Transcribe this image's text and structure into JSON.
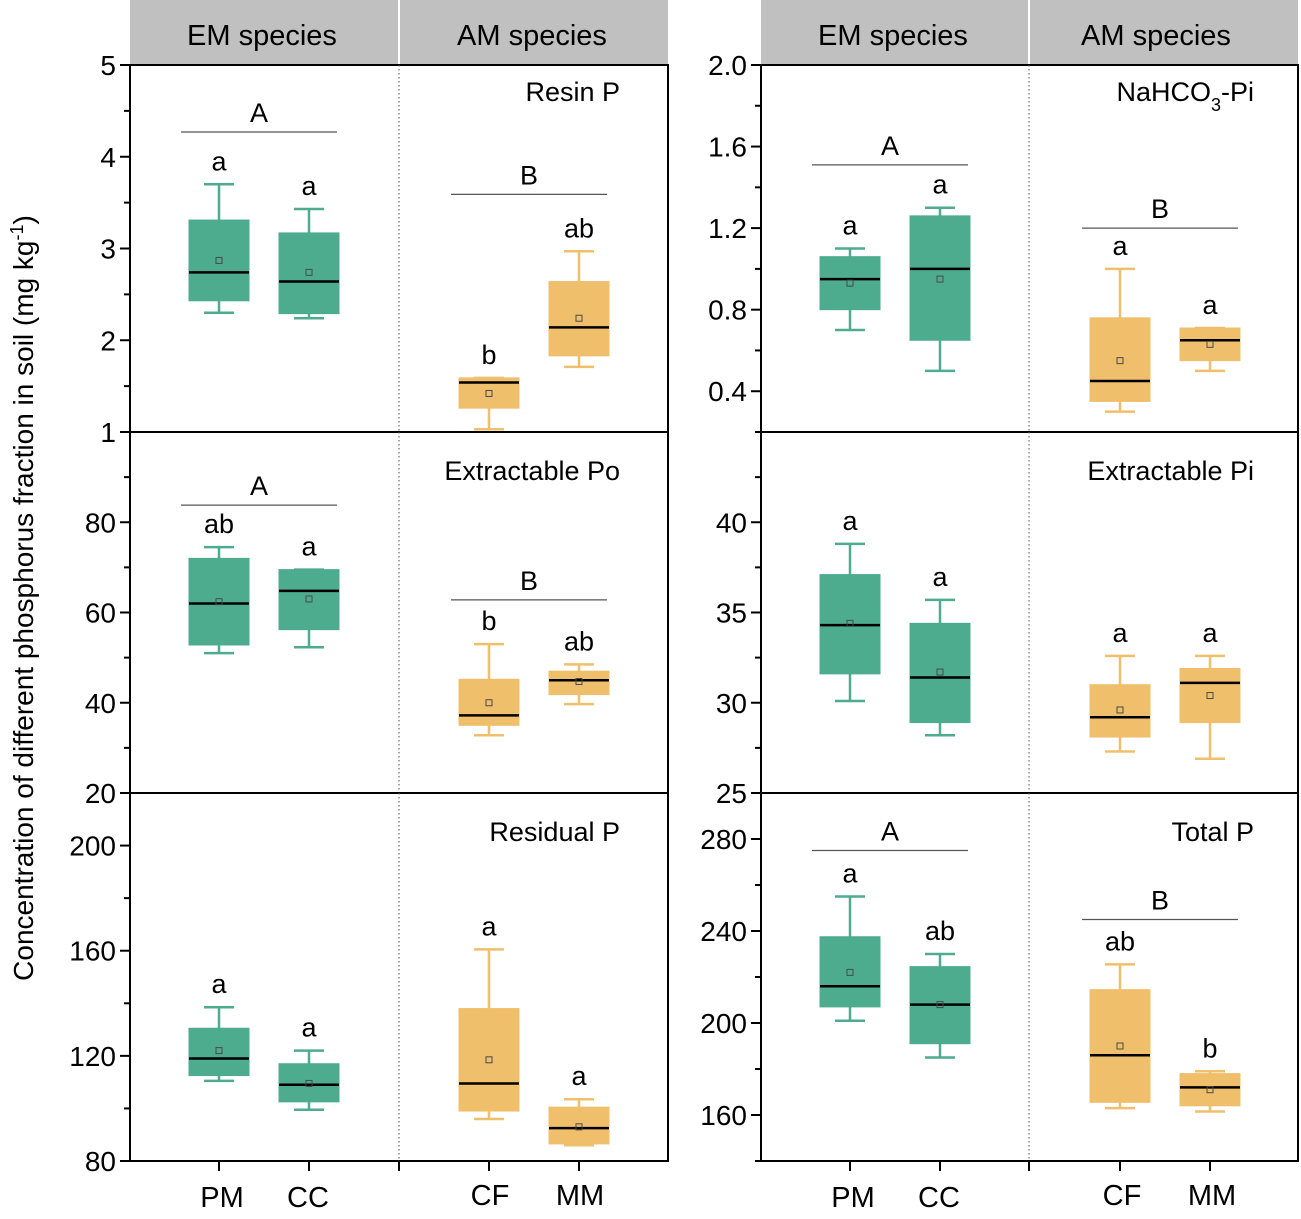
{
  "colors": {
    "em": "#4dab8e",
    "am": "#efbf6c",
    "header": "#c0c0c0",
    "median": "#000000",
    "sigline": "#555555"
  },
  "headers": {
    "left": {
      "em": "EM species",
      "am": "AM species"
    },
    "right": {
      "em": "EM species",
      "am": "AM species"
    }
  },
  "y_axis_label": "Concentration of different phosphorus fraction in soil (mg kg",
  "y_axis_label_sup": "-1",
  "y_axis_label_end": ")",
  "x_categories": {
    "left": [
      "PM",
      "CC",
      "CF",
      "MM"
    ],
    "right": [
      "PM",
      "CC",
      "CF",
      "MM"
    ]
  },
  "chart_data": [
    {
      "type": "box",
      "title": "Resin P",
      "column": "left",
      "row": 0,
      "ylim": [
        1,
        5
      ],
      "yticks": [
        1,
        2,
        3,
        4,
        5
      ],
      "categories": [
        "PM",
        "CC",
        "CF",
        "MM"
      ],
      "groups": [
        "EM",
        "EM",
        "AM",
        "AM"
      ],
      "boxes": [
        {
          "min": 2.3,
          "q1": 2.43,
          "median": 2.74,
          "q3": 3.31,
          "max": 3.7,
          "mean": 2.87
        },
        {
          "min": 2.24,
          "q1": 2.29,
          "median": 2.64,
          "q3": 3.17,
          "max": 3.43,
          "mean": 2.74
        },
        {
          "min": 1.03,
          "q1": 1.26,
          "median": 1.54,
          "q3": 1.59,
          "max": 1.59,
          "mean": 1.42
        },
        {
          "min": 1.71,
          "q1": 1.83,
          "median": 2.14,
          "q3": 2.64,
          "max": 2.97,
          "mean": 2.24
        }
      ],
      "letters": [
        "a",
        "a",
        "b",
        "ab"
      ],
      "group_letters": {
        "EM": "A",
        "AM": "B"
      },
      "group_line_y": {
        "EM": 4.27,
        "AM": 3.59
      }
    },
    {
      "type": "box",
      "title": "Extractable Po",
      "column": "left",
      "row": 1,
      "ylim": [
        20,
        100
      ],
      "yticks": [
        20,
        40,
        60,
        80
      ],
      "categories": [
        "PM",
        "CC",
        "CF",
        "MM"
      ],
      "groups": [
        "EM",
        "EM",
        "AM",
        "AM"
      ],
      "boxes": [
        {
          "min": 51,
          "q1": 52.8,
          "median": 62,
          "q3": 72,
          "max": 74.5,
          "mean": 62.4
        },
        {
          "min": 52.3,
          "q1": 56.2,
          "median": 64.8,
          "q3": 69.5,
          "max": 69.5,
          "mean": 63
        },
        {
          "min": 32.8,
          "q1": 35,
          "median": 37.2,
          "q3": 45.2,
          "max": 53,
          "mean": 40
        },
        {
          "min": 39.7,
          "q1": 41.8,
          "median": 45,
          "q3": 47,
          "max": 48.5,
          "mean": 44.7
        }
      ],
      "letters": [
        "ab",
        "a",
        "b",
        "ab"
      ],
      "group_letters": {
        "EM": "A",
        "AM": "B"
      },
      "group_line_y": {
        "EM": 83.8,
        "AM": 62.8
      }
    },
    {
      "type": "box",
      "title": "Residual P",
      "column": "left",
      "row": 2,
      "ylim": [
        80,
        220
      ],
      "yticks": [
        80,
        120,
        160,
        200
      ],
      "categories": [
        "PM",
        "CC",
        "CF",
        "MM"
      ],
      "groups": [
        "EM",
        "EM",
        "AM",
        "AM"
      ],
      "boxes": [
        {
          "min": 110.5,
          "q1": 112.5,
          "median": 119,
          "q3": 130.5,
          "max": 138.5,
          "mean": 122
        },
        {
          "min": 99.5,
          "q1": 102.5,
          "median": 109,
          "q3": 117,
          "max": 122,
          "mean": 109.5
        },
        {
          "min": 96,
          "q1": 99,
          "median": 109.5,
          "q3": 138,
          "max": 160.5,
          "mean": 118.5
        },
        {
          "min": 86,
          "q1": 86.5,
          "median": 92.5,
          "q3": 100.5,
          "max": 103.5,
          "mean": 93
        }
      ],
      "letters": [
        "a",
        "a",
        "a",
        "a"
      ],
      "group_letters": {},
      "group_line_y": {}
    },
    {
      "type": "box",
      "title": "NaHCO",
      "title_sub": "3",
      "title_end": "-Pi",
      "column": "right",
      "row": 0,
      "ylim": [
        0.2,
        2.0
      ],
      "yticks": [
        0.4,
        0.8,
        1.2,
        1.6,
        2.0
      ],
      "ytick_labels": [
        "0.4",
        "0.8",
        "1.2",
        "1.6",
        "2.0"
      ],
      "categories": [
        "PM",
        "CC",
        "CF",
        "MM"
      ],
      "groups": [
        "EM",
        "EM",
        "AM",
        "AM"
      ],
      "boxes": [
        {
          "min": 0.7,
          "q1": 0.8,
          "median": 0.95,
          "q3": 1.06,
          "max": 1.1,
          "mean": 0.93
        },
        {
          "min": 0.5,
          "q1": 0.65,
          "median": 1.0,
          "q3": 1.26,
          "max": 1.3,
          "mean": 0.95
        },
        {
          "min": 0.3,
          "q1": 0.35,
          "median": 0.45,
          "q3": 0.76,
          "max": 1.0,
          "mean": 0.55
        },
        {
          "min": 0.5,
          "q1": 0.55,
          "median": 0.65,
          "q3": 0.71,
          "max": 0.71,
          "mean": 0.63
        }
      ],
      "letters": [
        "a",
        "a",
        "a",
        "a"
      ],
      "group_letters": {
        "EM": "A",
        "AM": "B"
      },
      "group_line_y": {
        "EM": 1.51,
        "AM": 1.2
      }
    },
    {
      "type": "box",
      "title": "Extractable Pi",
      "column": "right",
      "row": 1,
      "ylim": [
        25,
        45
      ],
      "yticks": [
        25,
        30,
        35,
        40
      ],
      "categories": [
        "PM",
        "CC",
        "CF",
        "MM"
      ],
      "groups": [
        "EM",
        "EM",
        "AM",
        "AM"
      ],
      "boxes": [
        {
          "min": 30.1,
          "q1": 31.6,
          "median": 34.3,
          "q3": 37.1,
          "max": 38.8,
          "mean": 34.4
        },
        {
          "min": 28.2,
          "q1": 28.9,
          "median": 31.4,
          "q3": 34.4,
          "max": 35.7,
          "mean": 31.7
        },
        {
          "min": 27.3,
          "q1": 28.1,
          "median": 29.2,
          "q3": 31,
          "max": 32.6,
          "mean": 29.6
        },
        {
          "min": 26.9,
          "q1": 28.9,
          "median": 31.1,
          "q3": 31.9,
          "max": 32.6,
          "mean": 30.4
        }
      ],
      "letters": [
        "a",
        "a",
        "a",
        "a"
      ],
      "group_letters": {},
      "group_line_y": {}
    },
    {
      "type": "box",
      "title": "Total P",
      "column": "right",
      "row": 2,
      "ylim": [
        140,
        300
      ],
      "yticks": [
        160,
        200,
        240,
        280
      ],
      "categories": [
        "PM",
        "CC",
        "CF",
        "MM"
      ],
      "groups": [
        "EM",
        "EM",
        "AM",
        "AM"
      ],
      "boxes": [
        {
          "min": 201,
          "q1": 207,
          "median": 216,
          "q3": 237.5,
          "max": 255,
          "mean": 222
        },
        {
          "min": 185,
          "q1": 191,
          "median": 208,
          "q3": 224.5,
          "max": 230,
          "mean": 208
        },
        {
          "min": 163,
          "q1": 165.5,
          "median": 186,
          "q3": 214.5,
          "max": 225.5,
          "mean": 190
        },
        {
          "min": 161.5,
          "q1": 164,
          "median": 172,
          "q3": 178,
          "max": 179,
          "mean": 171
        }
      ],
      "letters": [
        "a",
        "ab",
        "ab",
        "b"
      ],
      "group_letters": {
        "EM": "A",
        "AM": "B"
      },
      "group_line_y": {
        "EM": 275,
        "AM": 245
      }
    }
  ]
}
